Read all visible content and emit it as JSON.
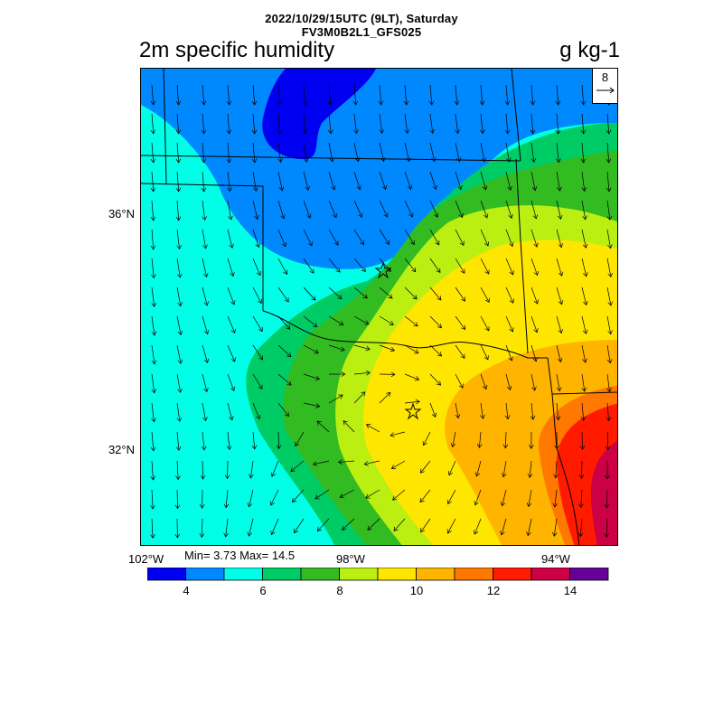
{
  "header": {
    "line1": "2022/10/29/15UTC (9LT), Saturday",
    "line2": "FV3M0B2L1_GFS025"
  },
  "field": {
    "title": "2m specific humidity",
    "units": "g kg-1"
  },
  "reference_vector": {
    "value": "8"
  },
  "axes": {
    "lat_labels": [
      "36°N",
      "32°N"
    ],
    "lon_labels": [
      "102°W",
      "98°W",
      "94°W"
    ]
  },
  "stats": {
    "text": "Min= 3.73 Max= 14.5"
  },
  "colorbar": {
    "colors": [
      "#0000f0",
      "#0088ff",
      "#00ffe6",
      "#00cc66",
      "#33bb22",
      "#bbee11",
      "#ffe600",
      "#ffb400",
      "#ff7800",
      "#ff1a00",
      "#cc0044",
      "#660099"
    ],
    "labels": [
      "4",
      "6",
      "8",
      "10",
      "12",
      "14"
    ]
  },
  "map": {
    "background": "#00ffe6",
    "markers": [
      "star-oklahoma-city",
      "star-dallas-fort-worth"
    ]
  }
}
